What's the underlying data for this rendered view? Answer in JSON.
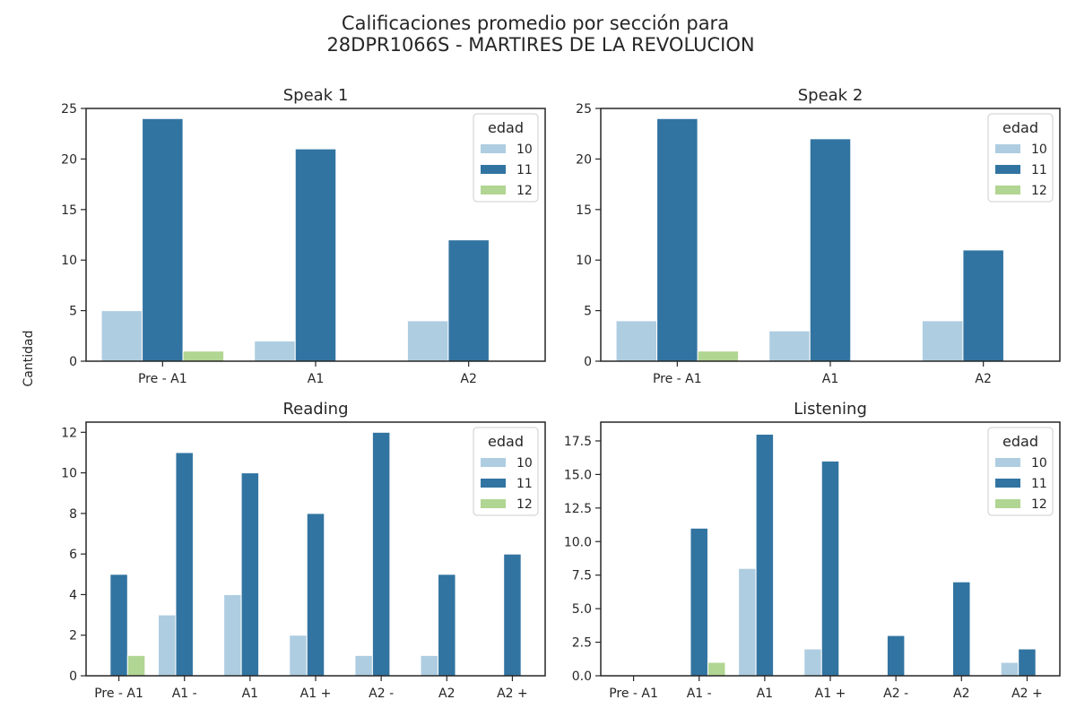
{
  "figure": {
    "title_line1": "Calificaciones promedio por sección para",
    "title_line2": "28DPR1066S - MARTIRES DE LA REVOLUCION",
    "ylabel": "Cantidad"
  },
  "colors": {
    "10": "#aecde1",
    "11": "#3274a1",
    "12": "#b1d592"
  },
  "chart_data": [
    {
      "type": "bar",
      "title": "Speak 1",
      "categories": [
        "Pre - A1",
        "A1",
        "A2"
      ],
      "series": [
        {
          "name": "10",
          "values": [
            5,
            2,
            4
          ]
        },
        {
          "name": "11",
          "values": [
            24,
            21,
            12
          ]
        },
        {
          "name": "12",
          "values": [
            1,
            0,
            0
          ]
        }
      ],
      "ylim": [
        0,
        25
      ],
      "yticks": [
        0,
        5,
        10,
        15,
        20,
        25
      ],
      "ytick_labels": [
        "0",
        "5",
        "10",
        "15",
        "20",
        "25"
      ],
      "legend": {
        "title": "edad",
        "placement": "top-right"
      },
      "grid": false
    },
    {
      "type": "bar",
      "title": "Speak 2",
      "categories": [
        "Pre - A1",
        "A1",
        "A2"
      ],
      "series": [
        {
          "name": "10",
          "values": [
            4,
            3,
            4
          ]
        },
        {
          "name": "11",
          "values": [
            24,
            22,
            11
          ]
        },
        {
          "name": "12",
          "values": [
            1,
            0,
            0
          ]
        }
      ],
      "ylim": [
        0,
        25
      ],
      "yticks": [
        0,
        5,
        10,
        15,
        20,
        25
      ],
      "ytick_labels": [
        "0",
        "5",
        "10",
        "15",
        "20",
        "25"
      ],
      "legend": {
        "title": "edad",
        "placement": "top-right"
      },
      "grid": false
    },
    {
      "type": "bar",
      "title": "Reading",
      "categories": [
        "Pre - A1",
        "A1 -",
        "A1",
        "A1 +",
        "A2 -",
        "A2",
        "A2 +"
      ],
      "series": [
        {
          "name": "10",
          "values": [
            0,
            3,
            4,
            2,
            1,
            1,
            0
          ]
        },
        {
          "name": "11",
          "values": [
            5,
            11,
            10,
            8,
            12,
            5,
            6
          ]
        },
        {
          "name": "12",
          "values": [
            1,
            0,
            0,
            0,
            0,
            0,
            0
          ]
        }
      ],
      "ylim": [
        0,
        12.5
      ],
      "yticks": [
        0,
        2,
        4,
        6,
        8,
        10,
        12
      ],
      "ytick_labels": [
        "0",
        "2",
        "4",
        "6",
        "8",
        "10",
        "12"
      ],
      "legend": {
        "title": "edad",
        "placement": "top-right"
      },
      "grid": false
    },
    {
      "type": "bar",
      "title": "Listening",
      "categories": [
        "Pre - A1",
        "A1 -",
        "A1",
        "A1 +",
        "A2 -",
        "A2",
        "A2 +"
      ],
      "series": [
        {
          "name": "10",
          "values": [
            0,
            0,
            8,
            2,
            0,
            0,
            1
          ]
        },
        {
          "name": "11",
          "values": [
            0,
            11,
            18,
            16,
            3,
            7,
            2
          ]
        },
        {
          "name": "12",
          "values": [
            0,
            1,
            0,
            0,
            0,
            0,
            0
          ]
        }
      ],
      "ylim": [
        0,
        18.9
      ],
      "yticks": [
        0,
        2.5,
        5,
        7.5,
        10,
        12.5,
        15,
        17.5
      ],
      "ytick_labels": [
        "0.0",
        "2.5",
        "5.0",
        "7.5",
        "10.0",
        "12.5",
        "15.0",
        "17.5"
      ],
      "legend": {
        "title": "edad",
        "placement": "top-right"
      },
      "grid": false
    }
  ]
}
